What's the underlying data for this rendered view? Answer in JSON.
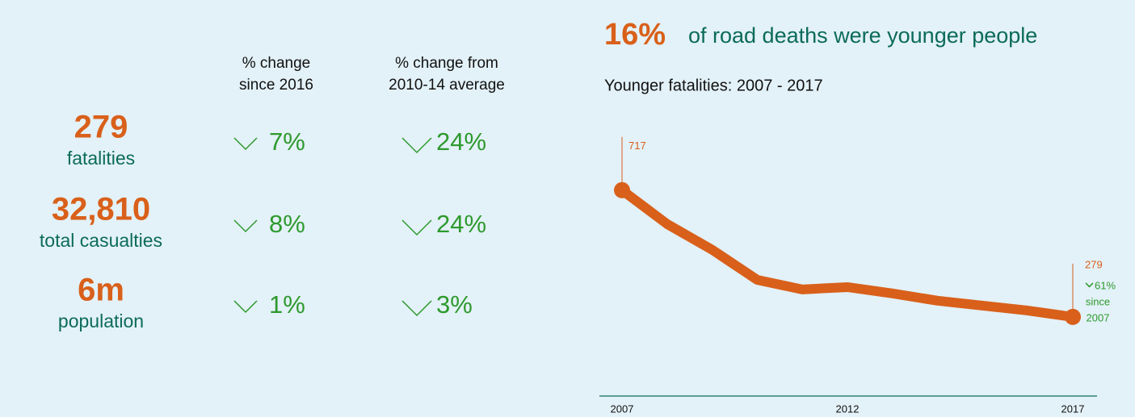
{
  "stats": {
    "headers": [
      [
        "% change",
        "since 2016"
      ],
      [
        "% change from",
        "2010-14 average"
      ]
    ],
    "rows": [
      {
        "value": "279",
        "label": "fatalities",
        "change_2016": "7%",
        "change_avg": "24%"
      },
      {
        "value": "32,810",
        "label": "total casualties",
        "change_2016": "8%",
        "change_avg": "24%"
      },
      {
        "value": "6m",
        "label": "population",
        "change_2016": "1%",
        "change_avg": "3%"
      }
    ]
  },
  "headline": {
    "value": "16%",
    "text": "of road deaths were younger people"
  },
  "chart_data": {
    "type": "line",
    "title": "Younger fatalities: 2007 - 2017",
    "x": [
      2007,
      2008,
      2009,
      2010,
      2011,
      2012,
      2013,
      2014,
      2015,
      2016,
      2017
    ],
    "series": [
      {
        "name": "Younger fatalities",
        "color": "#d9601a",
        "values": [
          717,
          600,
          511,
          407,
          374,
          382,
          360,
          335,
          318,
          301,
          279
        ]
      }
    ],
    "xlim": [
      2007,
      2017
    ],
    "xticks": [
      2007,
      2012,
      2017
    ],
    "ylim": [
      0,
      800
    ],
    "grid": false,
    "annotation": {
      "change": "61%",
      "since": "since",
      "year": "2007"
    }
  }
}
